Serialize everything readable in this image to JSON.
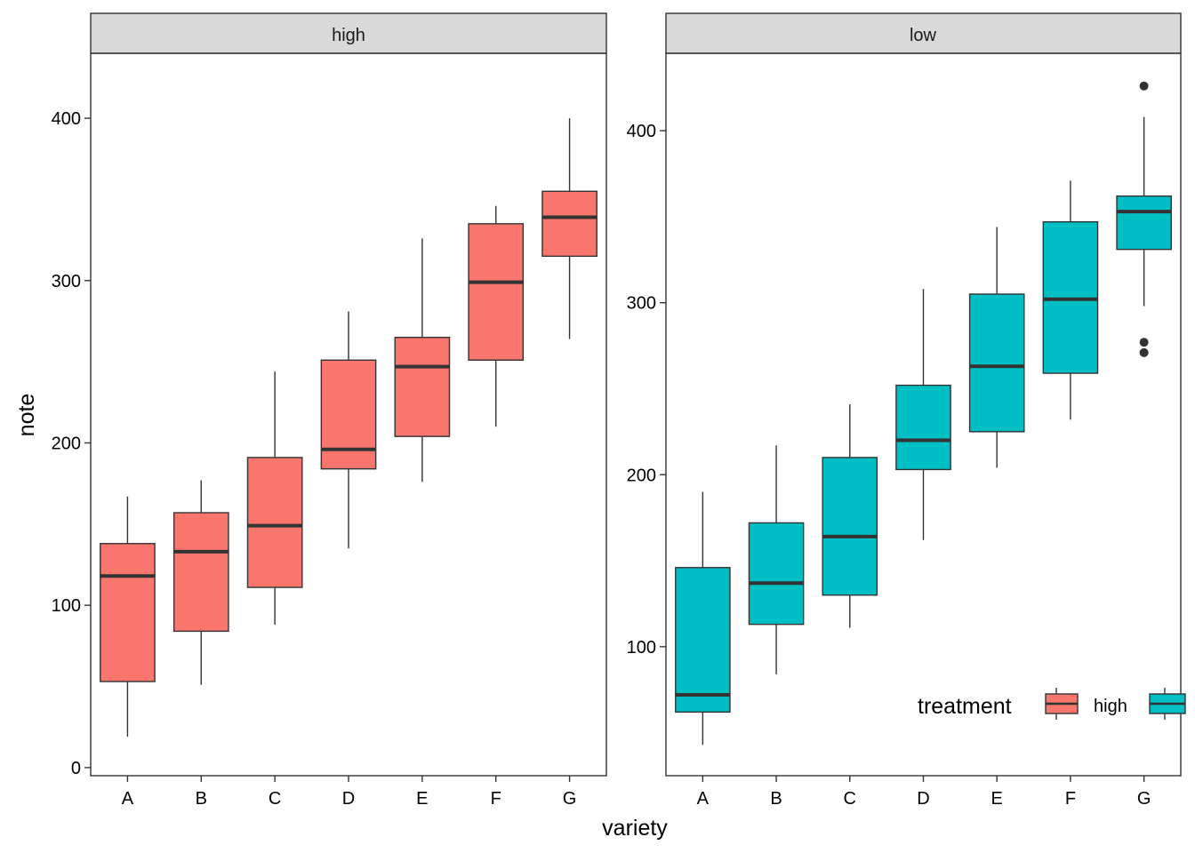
{
  "chart_data": {
    "type": "boxplot",
    "xlabel": "variety",
    "ylabel": "note",
    "categories": [
      "A",
      "B",
      "C",
      "D",
      "E",
      "F",
      "G"
    ],
    "legend": {
      "title": "treatment",
      "items": [
        "high",
        "low"
      ],
      "placement": "bottom-right"
    },
    "colors": {
      "high": "#f8766d",
      "low": "#00bfc4",
      "strip": "#d9d9d9",
      "line": "#333333"
    },
    "panels": [
      {
        "strip_label": "high",
        "series": "high",
        "ylim": [
          -5,
          440
        ],
        "yticks": [
          0,
          100,
          200,
          300,
          400
        ],
        "boxes": [
          {
            "category": "A",
            "min": 19,
            "q1": 53,
            "median": 118,
            "q3": 138,
            "max": 167,
            "outliers": []
          },
          {
            "category": "B",
            "min": 51,
            "q1": 84,
            "median": 133,
            "q3": 157,
            "max": 177,
            "outliers": []
          },
          {
            "category": "C",
            "min": 88,
            "q1": 111,
            "median": 149,
            "q3": 191,
            "max": 244,
            "outliers": []
          },
          {
            "category": "D",
            "min": 135,
            "q1": 184,
            "median": 196,
            "q3": 251,
            "max": 281,
            "outliers": []
          },
          {
            "category": "E",
            "min": 176,
            "q1": 204,
            "median": 247,
            "q3": 265,
            "max": 326,
            "outliers": []
          },
          {
            "category": "F",
            "min": 210,
            "q1": 251,
            "median": 299,
            "q3": 335,
            "max": 346,
            "outliers": []
          },
          {
            "category": "G",
            "min": 264,
            "q1": 315,
            "median": 339,
            "q3": 355,
            "max": 400,
            "outliers": []
          }
        ]
      },
      {
        "strip_label": "low",
        "series": "low",
        "ylim": [
          25,
          445
        ],
        "yticks": [
          100,
          200,
          300,
          400
        ],
        "boxes": [
          {
            "category": "A",
            "min": 43,
            "q1": 62,
            "median": 72,
            "q3": 146,
            "max": 190,
            "outliers": []
          },
          {
            "category": "B",
            "min": 84,
            "q1": 113,
            "median": 137,
            "q3": 172,
            "max": 217,
            "outliers": []
          },
          {
            "category": "C",
            "min": 111,
            "q1": 130,
            "median": 164,
            "q3": 210,
            "max": 241,
            "outliers": []
          },
          {
            "category": "D",
            "min": 162,
            "q1": 203,
            "median": 220,
            "q3": 252,
            "max": 308,
            "outliers": []
          },
          {
            "category": "E",
            "min": 204,
            "q1": 225,
            "median": 263,
            "q3": 305,
            "max": 344,
            "outliers": []
          },
          {
            "category": "F",
            "min": 232,
            "q1": 259,
            "median": 302,
            "q3": 347,
            "max": 371,
            "outliers": []
          },
          {
            "category": "G",
            "min": 298,
            "q1": 331,
            "median": 353,
            "q3": 362,
            "max": 408,
            "outliers": [
              426,
              277,
              271
            ]
          }
        ]
      }
    ]
  }
}
